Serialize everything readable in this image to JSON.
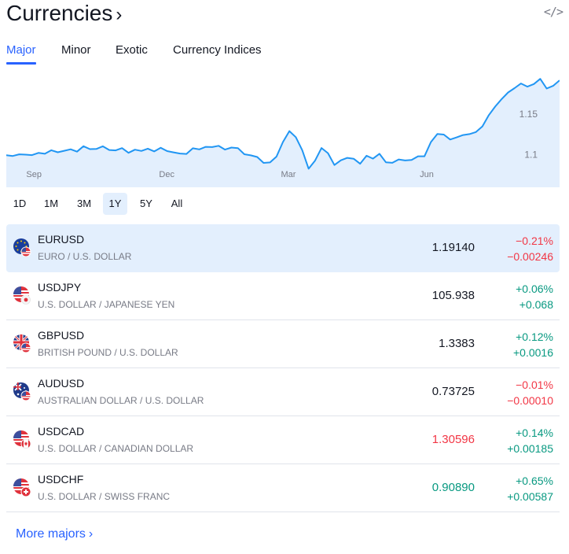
{
  "header": {
    "title": "Currencies",
    "chevron": "›",
    "embed_icon": "code-icon",
    "embed_glyph": "</>"
  },
  "tabs": [
    {
      "label": "Major",
      "active": true
    },
    {
      "label": "Minor",
      "active": false
    },
    {
      "label": "Exotic",
      "active": false
    },
    {
      "label": "Currency Indices",
      "active": false
    }
  ],
  "chart_data": {
    "type": "area",
    "title": "",
    "x_labels": [
      "Sep",
      "Dec",
      "Mar",
      "Jun"
    ],
    "y_labels": [
      "1.15",
      "1.1"
    ],
    "ylim": [
      1.06,
      1.205
    ],
    "color": "#2196f3",
    "fill": "#e3effd",
    "values": [
      1.0993,
      1.0985,
      1.1005,
      1.1001,
      1.0995,
      1.1022,
      1.1012,
      1.1055,
      1.103,
      1.1049,
      1.1067,
      1.1038,
      1.1105,
      1.1069,
      1.1071,
      1.1104,
      1.1058,
      1.1053,
      1.1081,
      1.1023,
      1.1062,
      1.1047,
      1.1075,
      1.1041,
      1.1085,
      1.1045,
      1.1029,
      1.1015,
      1.101,
      1.1079,
      1.1066,
      1.1097,
      1.1094,
      1.1109,
      1.1063,
      1.1088,
      1.1081,
      1.1006,
      1.0992,
      1.0972,
      1.09,
      1.0905,
      1.0977,
      1.1156,
      1.129,
      1.1216,
      1.1055,
      1.0828,
      1.0928,
      1.1082,
      1.102,
      1.0874,
      1.0932,
      1.0962,
      1.0951,
      1.0889,
      1.0988,
      1.0952,
      1.1012,
      1.0907,
      1.0901,
      1.0942,
      1.093,
      1.0935,
      1.0981,
      1.0981,
      1.1156,
      1.1255,
      1.1248,
      1.1187,
      1.1213,
      1.1242,
      1.1253,
      1.1279,
      1.1348,
      1.1486,
      1.1592,
      1.1684,
      1.1765,
      1.1818,
      1.1875,
      1.1836,
      1.1868,
      1.1932,
      1.1813,
      1.1846,
      1.1914
    ]
  },
  "ranges": [
    {
      "label": "1D",
      "active": false
    },
    {
      "label": "1M",
      "active": false
    },
    {
      "label": "3M",
      "active": false
    },
    {
      "label": "1Y",
      "active": true
    },
    {
      "label": "5Y",
      "active": false
    },
    {
      "label": "All",
      "active": false
    }
  ],
  "rows": [
    {
      "symbol": "EURUSD",
      "description": "EURO / U.S. DOLLAR",
      "price": "1.19140",
      "price_color": "neutral",
      "change_pct": "−0.21%",
      "change_abs": "−0.00246",
      "direction": "down",
      "flag": "eu-flag-icon",
      "active": true
    },
    {
      "symbol": "USDJPY",
      "description": "U.S. DOLLAR / JAPANESE YEN",
      "price": "105.938",
      "price_color": "neutral",
      "change_pct": "+0.06%",
      "change_abs": "+0.068",
      "direction": "up",
      "flag": "us-jp-flag-icon",
      "active": false
    },
    {
      "symbol": "GBPUSD",
      "description": "BRITISH POUND / U.S. DOLLAR",
      "price": "1.3383",
      "price_color": "neutral",
      "change_pct": "+0.12%",
      "change_abs": "+0.0016",
      "direction": "up",
      "flag": "gb-us-flag-icon",
      "active": false
    },
    {
      "symbol": "AUDUSD",
      "description": "AUSTRALIAN DOLLAR / U.S. DOLLAR",
      "price": "0.73725",
      "price_color": "neutral",
      "change_pct": "−0.01%",
      "change_abs": "−0.00010",
      "direction": "down",
      "flag": "au-us-flag-icon",
      "active": false
    },
    {
      "symbol": "USDCAD",
      "description": "U.S. DOLLAR / CANADIAN DOLLAR",
      "price": "1.30596",
      "price_color": "down",
      "change_pct": "+0.14%",
      "change_abs": "+0.00185",
      "direction": "up",
      "flag": "us-ca-flag-icon",
      "active": false
    },
    {
      "symbol": "USDCHF",
      "description": "U.S. DOLLAR / SWISS FRANC",
      "price": "0.90890",
      "price_color": "up",
      "change_pct": "+0.65%",
      "change_abs": "+0.00587",
      "direction": "up",
      "flag": "us-ch-flag-icon",
      "active": false
    }
  ],
  "footer": {
    "more_label": "More majors",
    "more_chevron": "›"
  },
  "colors": {
    "accent": "#2962ff",
    "up": "#089981",
    "down": "#f23645",
    "line": "#2196f3",
    "highlight": "#e3effd"
  }
}
